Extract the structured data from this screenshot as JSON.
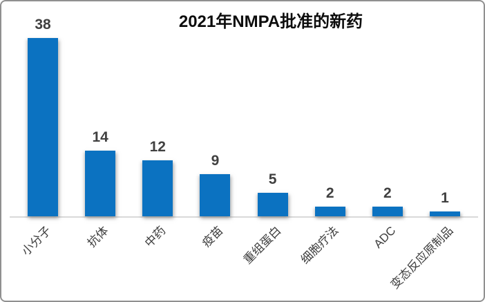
{
  "chart_data": {
    "type": "bar",
    "title": "2021年NMPA批准的新药",
    "categories": [
      "小分子",
      "抗体",
      "中药",
      "疫苗",
      "重组蛋白",
      "细胞疗法",
      "ADC",
      "变态反应原制品"
    ],
    "values": [
      38,
      14,
      12,
      9,
      5,
      2,
      2,
      1
    ],
    "data_labels": [
      "38",
      "14",
      "12",
      "9",
      "5",
      "2",
      "2",
      "1"
    ],
    "xlabel": "",
    "ylabel": "",
    "ylim": [
      0,
      40
    ],
    "grid": false,
    "legend": false,
    "y_axis_visible": false,
    "x_tick_rotation_deg": 45,
    "colors": {
      "bar": "#0B72C1",
      "title_text": "#0d0d0d",
      "value_label_text": "#404040",
      "tick_label_text": "#3d3d3d",
      "axis_line": "#d9d9d9",
      "frame_border": "#909090",
      "background": "#ffffff"
    }
  }
}
